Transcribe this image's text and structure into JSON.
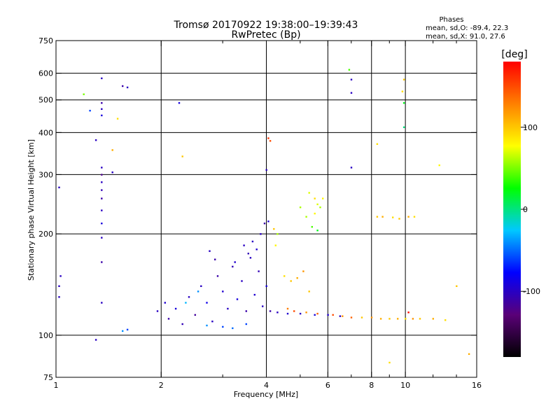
{
  "chart_data": {
    "type": "scatter",
    "title": "Tromsø 20170922 19:38:00–19:39:43",
    "subtitle": "RwPretec (Bp)",
    "xlabel": "Frequency [MHz]",
    "ylabel": "Stationary phase Virtual Height [km]",
    "x_scale": "log",
    "y_scale": "log",
    "xlim": [
      1,
      16
    ],
    "ylim": [
      75,
      750
    ],
    "x_ticks": [
      1,
      2,
      4,
      6,
      8,
      10,
      16
    ],
    "x_tick_labels": [
      "1",
      "2",
      "4",
      "6",
      "8",
      "10",
      "16"
    ],
    "y_ticks": [
      75,
      100,
      200,
      300,
      400,
      500,
      600,
      750
    ],
    "y_tick_labels": [
      "75",
      "100",
      "200",
      "300",
      "400",
      "500",
      "600",
      "750"
    ],
    "x_grid": [
      2,
      4,
      6,
      8,
      10
    ],
    "y_grid": [
      100,
      200,
      300,
      400,
      500,
      600
    ],
    "grid": true,
    "stats": {
      "heading": "Phases",
      "line1": "mean, sd,O: -89.4, 22.3",
      "line2": "mean, sd,X:  91.0, 27.6"
    },
    "colorbar": {
      "unit": "[deg]",
      "range": [
        -180,
        180
      ],
      "ticks": [
        100,
        0,
        -100
      ],
      "tick_labels": [
        "100",
        "0",
        "-100"
      ],
      "colors": [
        "#000000",
        "#5a0078",
        "#0000ff",
        "#00c8ff",
        "#00ff00",
        "#ffff00",
        "#ff8000",
        "#ff0000"
      ]
    },
    "series": [
      {
        "points": [
          [
            1.95,
            118,
            -100
          ],
          [
            2.05,
            125,
            -95
          ],
          [
            2.1,
            112,
            -110
          ],
          [
            2.2,
            120,
            -90
          ],
          [
            2.3,
            108,
            -105
          ],
          [
            2.4,
            130,
            -100
          ],
          [
            2.5,
            115,
            -115
          ],
          [
            2.6,
            140,
            -100
          ],
          [
            2.7,
            125,
            -85
          ],
          [
            2.8,
            110,
            -100
          ],
          [
            2.9,
            150,
            -110
          ],
          [
            3.0,
            135,
            -95
          ],
          [
            3.1,
            120,
            -100
          ],
          [
            3.2,
            160,
            -105
          ],
          [
            3.3,
            128,
            -90
          ],
          [
            3.4,
            145,
            -100
          ],
          [
            3.5,
            118,
            -110
          ],
          [
            3.6,
            170,
            -100
          ],
          [
            3.7,
            132,
            -95
          ],
          [
            3.8,
            155,
            -105
          ],
          [
            3.9,
            122,
            -100
          ],
          [
            4.0,
            140,
            -90
          ],
          [
            4.1,
            118,
            -110
          ],
          [
            4.3,
            117,
            -100
          ],
          [
            4.6,
            116,
            -95
          ],
          [
            5.0,
            116,
            -100
          ],
          [
            5.5,
            115,
            -90
          ],
          [
            6.0,
            115,
            -95
          ],
          [
            6.5,
            114,
            -100
          ],
          [
            2.75,
            178,
            -100
          ],
          [
            2.85,
            168,
            -110
          ],
          [
            3.25,
            165,
            -95
          ],
          [
            3.45,
            185,
            -100
          ],
          [
            3.55,
            175,
            -105
          ],
          [
            3.65,
            190,
            -100
          ],
          [
            3.75,
            180,
            -95
          ],
          [
            3.85,
            200,
            -100
          ],
          [
            3.95,
            215,
            -110
          ],
          [
            4.05,
            218,
            -95
          ],
          [
            3.0,
            106,
            -60
          ],
          [
            3.2,
            105,
            -50
          ],
          [
            2.7,
            107,
            -40
          ],
          [
            3.5,
            108,
            -60
          ],
          [
            2.35,
            125,
            -30
          ],
          [
            2.55,
            135,
            -40
          ],
          [
            1.55,
            103,
            -40
          ],
          [
            1.6,
            104,
            -60
          ]
        ]
      },
      {
        "points": [
          [
            1.35,
            580,
            -100
          ],
          [
            1.35,
            490,
            -110
          ],
          [
            1.35,
            470,
            -100
          ],
          [
            1.35,
            450,
            -90
          ],
          [
            1.35,
            315,
            -100
          ],
          [
            1.35,
            300,
            -120
          ],
          [
            1.35,
            285,
            -100
          ],
          [
            1.35,
            270,
            -105
          ],
          [
            1.35,
            255,
            -110
          ],
          [
            1.35,
            235,
            -100
          ],
          [
            1.35,
            215,
            -90
          ],
          [
            1.35,
            195,
            -100
          ],
          [
            1.35,
            165,
            -110
          ],
          [
            1.35,
            125,
            -100
          ],
          [
            1.3,
            380,
            -100
          ],
          [
            1.3,
            97,
            -100
          ],
          [
            1.25,
            465,
            -60
          ],
          [
            1.45,
            305,
            -100
          ],
          [
            1.55,
            550,
            -110
          ],
          [
            1.6,
            545,
            -100
          ],
          [
            2.25,
            490,
            -90
          ],
          [
            4.0,
            310,
            -100
          ],
          [
            7.0,
            575,
            -100
          ],
          [
            7.0,
            525,
            -100
          ],
          [
            7.0,
            315,
            -100
          ],
          [
            1.02,
            275,
            -100
          ],
          [
            1.03,
            150,
            -100
          ],
          [
            1.02,
            140,
            -100
          ],
          [
            1.02,
            130,
            -100
          ]
        ]
      },
      {
        "points": [
          [
            4.3,
            200,
            60
          ],
          [
            4.5,
            150,
            90
          ],
          [
            4.7,
            145,
            100
          ],
          [
            4.9,
            148,
            110
          ],
          [
            5.1,
            155,
            120
          ],
          [
            5.3,
            135,
            100
          ],
          [
            5.5,
            255,
            90
          ],
          [
            5.6,
            245,
            70
          ],
          [
            5.7,
            240,
            60
          ],
          [
            5.5,
            230,
            80
          ],
          [
            5.3,
            265,
            70
          ],
          [
            5.2,
            225,
            60
          ],
          [
            5.4,
            210,
            40
          ],
          [
            5.6,
            205,
            20
          ],
          [
            5.8,
            255,
            80
          ],
          [
            5.0,
            240,
            60
          ],
          [
            4.6,
            120,
            130
          ],
          [
            4.8,
            118,
            150
          ],
          [
            5.2,
            117,
            120
          ],
          [
            5.6,
            116,
            140
          ],
          [
            6.2,
            115,
            150
          ],
          [
            6.6,
            114,
            120
          ],
          [
            7.0,
            113,
            140
          ],
          [
            7.5,
            113,
            100
          ],
          [
            8.0,
            113,
            120
          ],
          [
            8.5,
            112,
            110
          ],
          [
            9.0,
            112,
            100
          ],
          [
            9.5,
            112,
            110
          ],
          [
            10.0,
            112,
            90
          ],
          [
            10.5,
            112,
            120
          ],
          [
            11.0,
            112,
            100
          ],
          [
            12.0,
            112,
            110
          ],
          [
            13.0,
            111,
            90
          ],
          [
            8.3,
            225,
            100
          ],
          [
            8.6,
            225,
            110
          ],
          [
            9.2,
            224,
            90
          ],
          [
            9.6,
            222,
            100
          ],
          [
            10.2,
            225,
            110
          ],
          [
            10.6,
            225,
            90
          ],
          [
            9.9,
            575,
            100
          ],
          [
            9.8,
            530,
            90
          ],
          [
            9.9,
            490,
            20
          ],
          [
            9.9,
            415,
            0
          ],
          [
            12.5,
            320,
            80
          ],
          [
            8.3,
            370,
            90
          ],
          [
            4.05,
            385,
            160
          ],
          [
            4.1,
            378,
            150
          ],
          [
            6.9,
            615,
            40
          ],
          [
            1.5,
            440,
            90
          ],
          [
            1.45,
            355,
            110
          ],
          [
            2.3,
            340,
            100
          ],
          [
            1.2,
            520,
            50
          ],
          [
            14.0,
            140,
            100
          ],
          [
            9.0,
            83,
            90
          ],
          [
            15.2,
            88,
            110
          ],
          [
            10.2,
            117,
            175
          ],
          [
            4.2,
            207,
            100
          ],
          [
            4.25,
            185,
            80
          ]
        ]
      }
    ]
  }
}
